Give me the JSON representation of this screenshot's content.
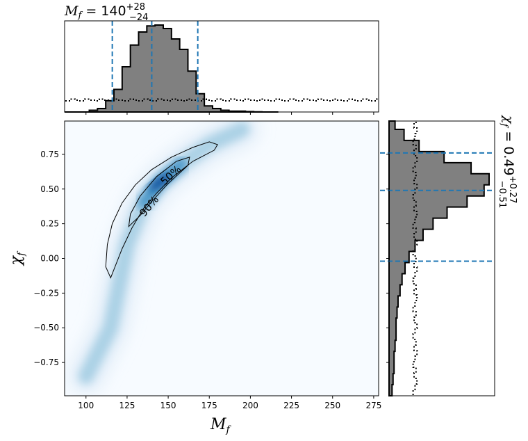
{
  "chart_data": {
    "type": "corner",
    "main": {
      "type": "heatmap",
      "xlabel": "M_f",
      "ylabel": "χ_f",
      "xlim": [
        87,
        278
      ],
      "ylim": [
        -0.99,
        0.99
      ],
      "xticks": [
        100,
        125,
        150,
        175,
        200,
        225,
        250,
        275
      ],
      "yticks": [
        -0.75,
        -0.5,
        -0.25,
        0.0,
        0.25,
        0.5,
        0.75
      ],
      "xtick_labels": [
        "100",
        "125",
        "150",
        "175",
        "200",
        "225",
        "250",
        "275"
      ],
      "ytick_labels": [
        "−0.75",
        "−0.50",
        "−0.25",
        "0.00",
        "0.25",
        "0.50",
        "0.75"
      ],
      "colormap": [
        "#f7fbff",
        "#deebf7",
        "#9ecae1",
        "#4292c6",
        "#08519c"
      ],
      "density_ridge": [
        [
          100,
          -0.85
        ],
        [
          115,
          -0.5
        ],
        [
          125,
          0.1
        ],
        [
          135,
          0.4
        ],
        [
          145,
          0.55
        ],
        [
          158,
          0.68
        ],
        [
          175,
          0.82
        ],
        [
          195,
          0.93
        ]
      ],
      "contours": [
        {
          "label": "90%",
          "points": [
            [
              115,
              -0.14
            ],
            [
              112,
              -0.06
            ],
            [
              113,
              0.1
            ],
            [
              116,
              0.25
            ],
            [
              122,
              0.4
            ],
            [
              130,
              0.53
            ],
            [
              140,
              0.64
            ],
            [
              152,
              0.73
            ],
            [
              165,
              0.8
            ],
            [
              175,
              0.84
            ],
            [
              180,
              0.82
            ],
            [
              178,
              0.78
            ],
            [
              165,
              0.7
            ],
            [
              152,
              0.58
            ],
            [
              143,
              0.47
            ],
            [
              135,
              0.36
            ],
            [
              128,
              0.22
            ],
            [
              122,
              0.07
            ]
          ]
        },
        {
          "label": "50%",
          "points": [
            [
              126,
              0.23
            ],
            [
              127,
              0.32
            ],
            [
              133,
              0.45
            ],
            [
              143,
              0.59
            ],
            [
              155,
              0.7
            ],
            [
              163,
              0.73
            ],
            [
              162,
              0.67
            ],
            [
              150,
              0.54
            ],
            [
              140,
              0.41
            ],
            [
              133,
              0.31
            ]
          ]
        }
      ]
    },
    "top_marginal": {
      "title": "M_f = 140 +28 −24",
      "title_parts": {
        "var": "M",
        "sub": "f",
        "eq": " = 140",
        "upper": "+28",
        "lower": "−24"
      },
      "bin_edges": [
        87,
        92,
        97,
        102,
        107,
        112,
        117,
        122,
        127,
        132,
        137,
        142,
        147,
        152,
        157,
        162,
        167,
        172,
        177,
        182,
        187,
        192,
        197,
        202,
        207,
        212,
        217
      ],
      "counts": [
        0.0,
        0.0,
        0.0,
        0.02,
        0.04,
        0.13,
        0.26,
        0.52,
        0.77,
        0.92,
        0.99,
        1.0,
        0.96,
        0.84,
        0.72,
        0.47,
        0.21,
        0.07,
        0.04,
        0.02,
        0.01,
        0.01,
        0.005,
        0.002,
        0.0,
        0.0
      ],
      "prior_level": 0.14,
      "quantiles": [
        116,
        140,
        168
      ]
    },
    "right_marginal": {
      "title": "χ_f = 0.49 +0.27 −0.51",
      "title_parts": {
        "var": "χ",
        "sub": "f",
        "eq": " = 0.49",
        "upper": "+0.27",
        "lower": "−0.51"
      },
      "bin_edges": [
        -0.99,
        -0.91,
        -0.83,
        -0.75,
        -0.67,
        -0.59,
        -0.51,
        -0.43,
        -0.35,
        -0.27,
        -0.19,
        -0.11,
        -0.03,
        0.05,
        0.13,
        0.21,
        0.29,
        0.37,
        0.45,
        0.53,
        0.61,
        0.69,
        0.77,
        0.85,
        0.93,
        0.99
      ],
      "counts": [
        0.03,
        0.04,
        0.05,
        0.05,
        0.06,
        0.07,
        0.07,
        0.08,
        0.09,
        0.11,
        0.13,
        0.16,
        0.2,
        0.26,
        0.34,
        0.44,
        0.58,
        0.78,
        0.95,
        1.0,
        0.82,
        0.55,
        0.3,
        0.15,
        0.06
      ],
      "prior_level": 0.26,
      "quantiles": [
        -0.02,
        0.49,
        0.76
      ]
    }
  }
}
